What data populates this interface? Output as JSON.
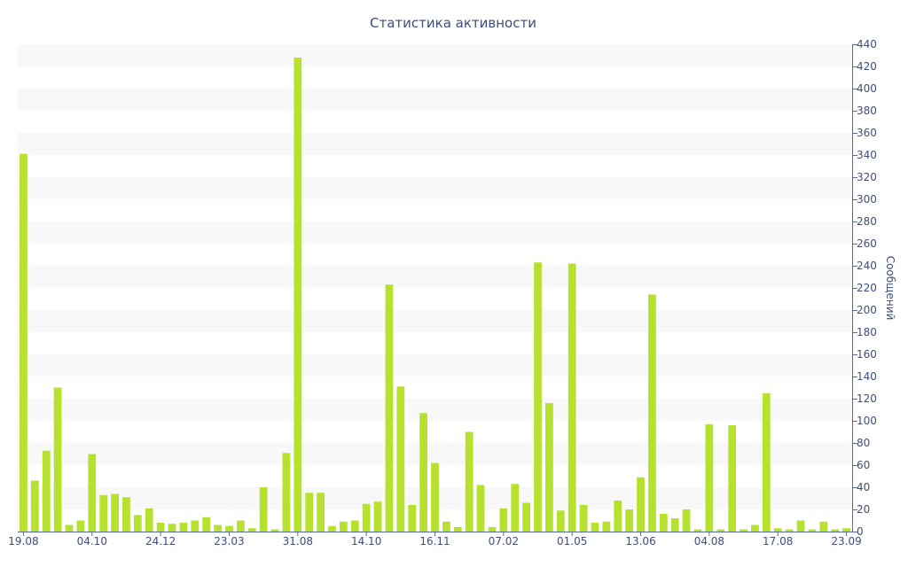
{
  "chart_data": {
    "type": "bar",
    "title": "Статистика активности",
    "xlabel": "",
    "ylabel": "Сообщений",
    "ylim": [
      0,
      440
    ],
    "y_tick_step": 20,
    "y_axis_side": "right",
    "grid": "alternating horizontal bands",
    "legend": "none",
    "x_tick_labels": [
      {
        "index": 0,
        "label": "19.08"
      },
      {
        "index": 6,
        "label": "04.10"
      },
      {
        "index": 12,
        "label": "24.12"
      },
      {
        "index": 18,
        "label": "23.03"
      },
      {
        "index": 24,
        "label": "31.08"
      },
      {
        "index": 30,
        "label": "14.10"
      },
      {
        "index": 36,
        "label": "16.11"
      },
      {
        "index": 42,
        "label": "07.02"
      },
      {
        "index": 48,
        "label": "01.05"
      },
      {
        "index": 54,
        "label": "13.06"
      },
      {
        "index": 60,
        "label": "04.08"
      },
      {
        "index": 66,
        "label": "17.08"
      },
      {
        "index": 72,
        "label": "23.09"
      }
    ],
    "values": [
      341,
      46,
      73,
      130,
      6,
      10,
      70,
      33,
      34,
      31,
      15,
      21,
      8,
      7,
      8,
      10,
      13,
      6,
      5,
      10,
      3,
      40,
      2,
      71,
      428,
      35,
      35,
      5,
      9,
      10,
      25,
      27,
      223,
      131,
      24,
      107,
      62,
      9,
      4,
      90,
      42,
      4,
      21,
      43,
      26,
      243,
      116,
      19,
      242,
      24,
      8,
      9,
      28,
      20,
      49,
      214,
      16,
      12,
      20,
      2,
      97,
      2,
      96,
      2,
      6,
      125,
      3,
      2,
      10,
      2,
      9,
      2,
      3
    ]
  },
  "colors": {
    "bar": "#b6e12e",
    "band": "#f8f8f8",
    "text": "#3e4d7a",
    "axis": "#5a6a99"
  }
}
